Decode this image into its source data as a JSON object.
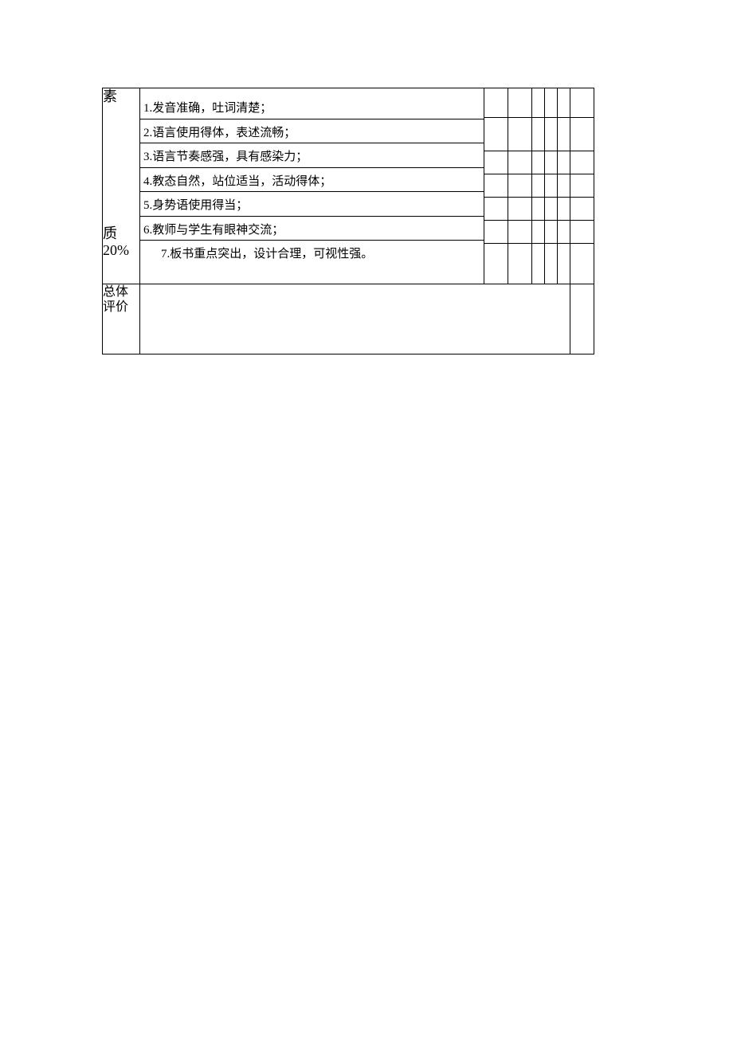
{
  "category": {
    "line1": "素",
    "line2_part1": "质",
    "line2_part2": "20%"
  },
  "items": [
    "1.发音准确，吐词清楚；",
    "2.语言使用得体，表述流畅；",
    "3.语言节奏感强，具有感染力；",
    "4.教态自然，站位适当，活动得体；",
    "5.身势语使用得当；",
    "6.教师与学生有眼神交流；",
    "7.板书重点突出，设计合理，可视性强。"
  ],
  "summary_label": "总体评价",
  "styling": {
    "font_family": "SimSun",
    "font_size_body": 15,
    "font_size_category": 18,
    "font_size_summary": 16,
    "border_color": "#000000",
    "background_color": "#ffffff",
    "text_color": "#000000",
    "column_widths": {
      "category": 47,
      "items": 432,
      "score_regular": 30,
      "score_narrow": 16,
      "score_last": 30
    },
    "row_heights": {
      "first": 37,
      "second": 42,
      "regular": 29,
      "last_item": 50,
      "summary": 88
    }
  }
}
